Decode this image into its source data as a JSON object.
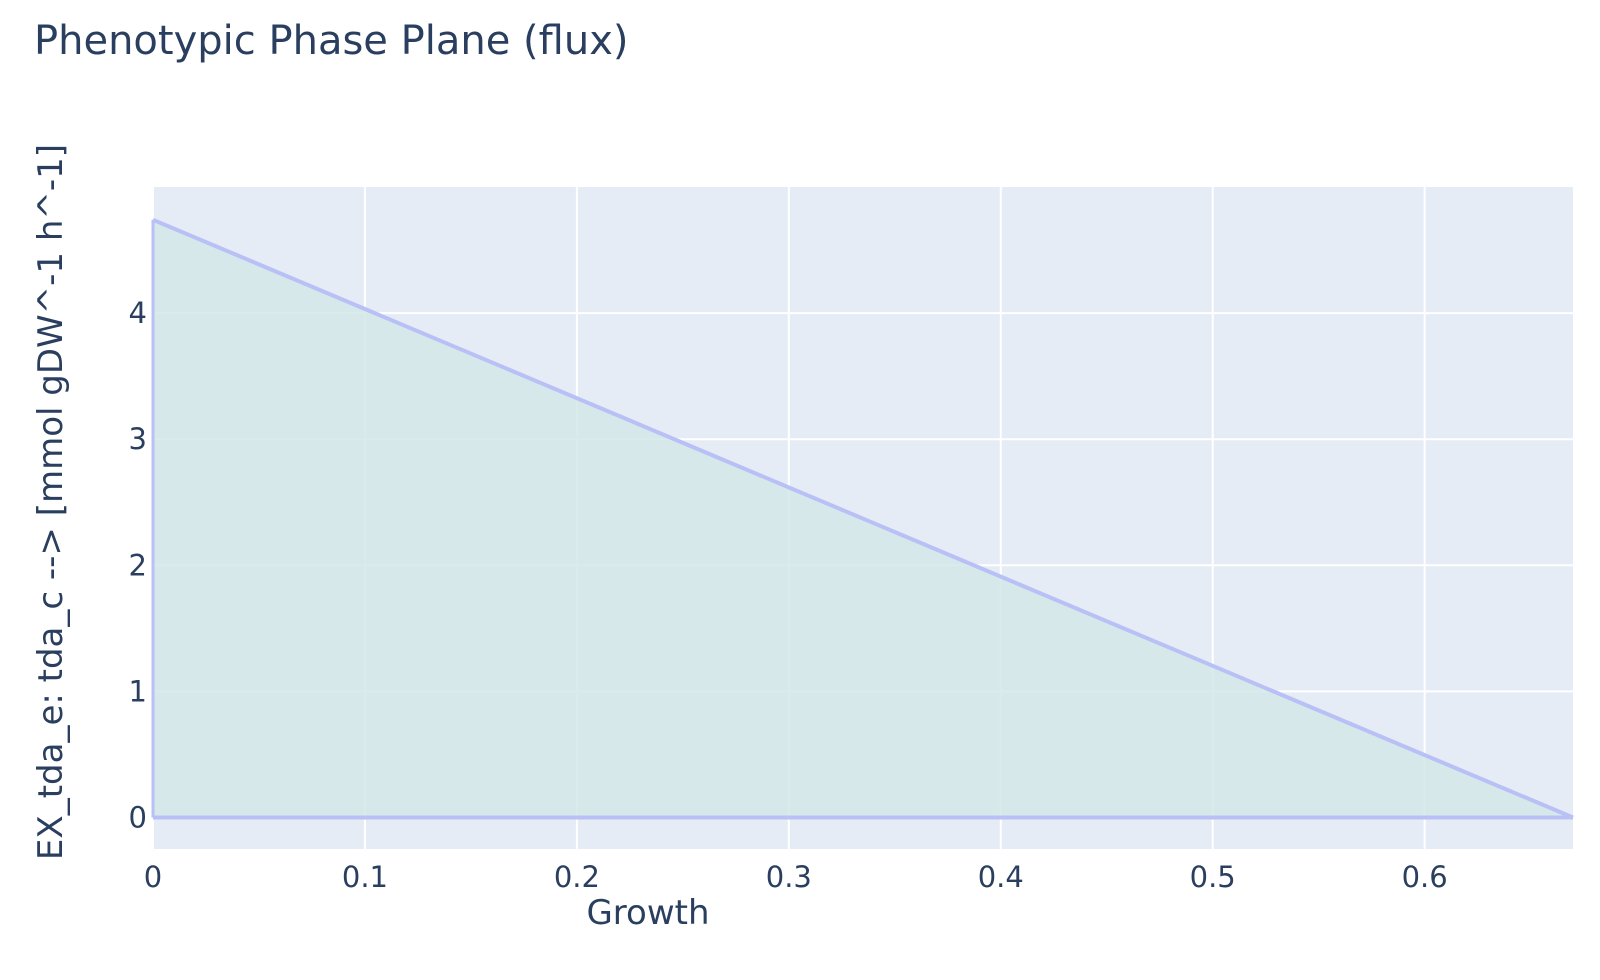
{
  "chart_data": {
    "type": "area",
    "title": "Phenotypic Phase Plane (flux)",
    "xlabel": "Growth",
    "ylabel": "EX_tda_e: tda_c -->  [mmol gDW^-1 h^-1]",
    "xlim": [
      0,
      0.67
    ],
    "ylim": [
      -0.25,
      5.0
    ],
    "x_ticks": [
      0,
      0.1,
      0.2,
      0.3,
      0.4,
      0.5,
      0.6
    ],
    "x_tick_labels": [
      "0",
      "0.1",
      "0.2",
      "0.3",
      "0.4",
      "0.5",
      "0.6"
    ],
    "y_ticks": [
      0,
      1,
      2,
      3,
      4
    ],
    "y_tick_labels": [
      "0",
      "1",
      "2",
      "3",
      "4"
    ],
    "grid": true,
    "series": [
      {
        "role": "upper-bound",
        "x": [
          0,
          0.67
        ],
        "y": [
          4.74,
          0
        ]
      },
      {
        "role": "lower-bound",
        "x": [
          0,
          0.67
        ],
        "y": [
          0,
          0
        ]
      }
    ],
    "colors": {
      "plot_background": "#e5ecf6",
      "grid": "#ffffff",
      "line": "#b9c0f6",
      "fill": "#d4e7e8",
      "text": "#2a3f5f"
    }
  }
}
